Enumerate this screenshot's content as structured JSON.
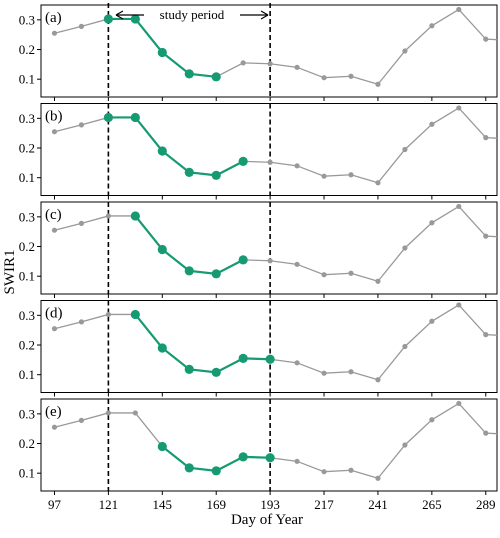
{
  "chart_data": {
    "type": "line",
    "ylabel": "SWIR1",
    "xlabel": "Day of Year",
    "x_ticks": [
      97,
      121,
      145,
      169,
      193,
      217,
      241,
      265,
      289
    ],
    "xlim": [
      91,
      294
    ],
    "ylim": [
      0.04,
      0.35
    ],
    "y_ticks": [
      0.1,
      0.2,
      0.3
    ],
    "y_tick_labels": [
      "0.1",
      "0.2",
      "0.3"
    ],
    "study_period": {
      "label": "study period",
      "start": 121,
      "end": 193
    },
    "colors": {
      "background_series": "#999999",
      "highlight_series": "#159a72",
      "vline": "#000000",
      "frame": "#000000"
    },
    "days": [
      97,
      109,
      121,
      133,
      145,
      157,
      169,
      181,
      193,
      205,
      217,
      229,
      241,
      253,
      265,
      277,
      289,
      297
    ],
    "values": [
      0.255,
      0.278,
      0.303,
      0.303,
      0.19,
      0.118,
      0.108,
      0.155,
      0.152,
      0.14,
      0.105,
      0.11,
      0.083,
      0.195,
      0.28,
      0.335,
      0.235,
      0.232
    ],
    "panels": [
      {
        "label": "(a)",
        "highlight_days": [
          121,
          133,
          145,
          157,
          169
        ]
      },
      {
        "label": "(b)",
        "highlight_days": [
          121,
          133,
          145,
          157,
          169,
          181
        ]
      },
      {
        "label": "(c)",
        "highlight_days": [
          133,
          145,
          157,
          169,
          181
        ]
      },
      {
        "label": "(d)",
        "highlight_days": [
          133,
          145,
          157,
          169,
          181,
          193
        ]
      },
      {
        "label": "(e)",
        "highlight_days": [
          145,
          157,
          169,
          181,
          193
        ]
      }
    ]
  }
}
